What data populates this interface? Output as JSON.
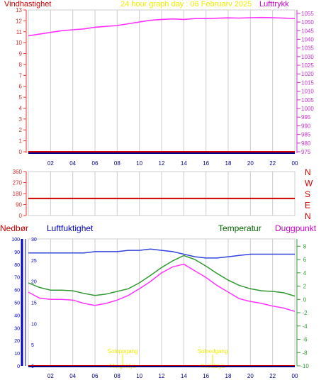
{
  "header": {
    "left_label": "Vindhastighet",
    "center_label": "24 hour graph day : 06 Februarv 2025",
    "right_label": "Lufttrykk"
  },
  "colors": {
    "pressure": "#ff33ff",
    "wind": "#cc0000",
    "direction": "#cc0000",
    "humidity": "#3344dd",
    "temperature": "#339933",
    "dewpoint": "#ff33ff",
    "rain": "#cc0000",
    "sun": "#eeee00",
    "axis_left": "#ff3333",
    "axis_left_text": "#cc3333",
    "axis_pressure": "#cc33cc",
    "axis_rain": "#0000cc",
    "axis_temp": "#339933",
    "hour_text": "#000088",
    "grid": "#cccccc"
  },
  "chart_data": [
    {
      "id": "wind_pressure",
      "type": "line",
      "x_ticks": [
        "02",
        "04",
        "06",
        "08",
        "10",
        "12",
        "14",
        "16",
        "18",
        "20",
        "22",
        "00"
      ],
      "left_axis": {
        "label": "Vindhastighet",
        "ticks": [
          0,
          1,
          2,
          3,
          4,
          5,
          6,
          7,
          8,
          9,
          10,
          11,
          12,
          13
        ],
        "ylim": [
          0,
          13
        ]
      },
      "right_axis": {
        "label": "Lufttrykk",
        "ticks": [
          975,
          980,
          985,
          990,
          995,
          1000,
          1005,
          1010,
          1015,
          1020,
          1025,
          1030,
          1035,
          1040,
          1045,
          1050,
          1055
        ],
        "ylim": [
          975,
          1057
        ]
      },
      "series": [
        {
          "key": "pressure",
          "axis": "right",
          "x": [
            0,
            1,
            2,
            3,
            4,
            5,
            6,
            7,
            8,
            9,
            10,
            11,
            12,
            13,
            14,
            15,
            16,
            17,
            18,
            19,
            20,
            21,
            22,
            23,
            24
          ],
          "values": [
            1042,
            1043,
            1044,
            1045,
            1045.5,
            1046,
            1047,
            1047.5,
            1048,
            1049,
            1050,
            1051,
            1051.5,
            1051.8,
            1051.5,
            1052,
            1052,
            1052.2,
            1052.4,
            1052.3,
            1052.5,
            1052.6,
            1052.5,
            1052.3,
            1052
          ]
        },
        {
          "key": "wind",
          "axis": "left",
          "x": [
            0,
            24
          ],
          "values": [
            0,
            0
          ]
        }
      ]
    },
    {
      "id": "wind_direction",
      "type": "line",
      "left_axis": {
        "ticks": [
          0,
          90,
          180,
          270,
          360
        ],
        "ylim": [
          0,
          360
        ]
      },
      "right_labels": [
        "N",
        "W",
        "S",
        "E",
        "N"
      ],
      "series": [
        {
          "key": "direction",
          "x": [
            0,
            24
          ],
          "values": [
            140,
            140
          ]
        }
      ]
    },
    {
      "id": "temp_humidity",
      "type": "line",
      "x_ticks": [
        "02",
        "04",
        "06",
        "08",
        "10",
        "12",
        "14",
        "16",
        "18",
        "20",
        "22",
        "00"
      ],
      "top_labels": {
        "rain": "Nedbør",
        "humidity": "Luftfuktighet",
        "temperature": "Temperatur",
        "dewpoint": "Duggpunkt"
      },
      "humidity_axis": {
        "ticks": [
          0,
          10,
          20,
          30,
          40,
          50,
          60,
          70,
          80,
          90,
          100
        ],
        "ylim": [
          0,
          100
        ]
      },
      "rain_axis": {
        "ticks": [
          0,
          5,
          10,
          15,
          20,
          25,
          30
        ],
        "ylim": [
          0,
          30
        ]
      },
      "temp_axis": {
        "ticks": [
          -10,
          -8,
          -6,
          -4,
          -2,
          0,
          2,
          4,
          6,
          8
        ],
        "ylim": [
          -10,
          9.1
        ]
      },
      "series": [
        {
          "key": "humidity",
          "axis": "humidity",
          "x": [
            0,
            1,
            2,
            3,
            4,
            5,
            6,
            7,
            8,
            9,
            10,
            11,
            12,
            13,
            14,
            15,
            16,
            17,
            18,
            19,
            20,
            21,
            22,
            23,
            24
          ],
          "values": [
            89,
            89,
            89,
            89,
            89,
            89,
            90,
            90,
            90,
            91,
            91,
            92,
            91,
            90,
            88,
            86,
            85,
            85,
            86,
            87,
            88,
            88,
            88,
            88,
            88
          ]
        },
        {
          "key": "temperature",
          "axis": "temp",
          "x": [
            0,
            1,
            2,
            3,
            4,
            5,
            6,
            7,
            8,
            9,
            10,
            11,
            12,
            13,
            14,
            15,
            16,
            17,
            18,
            19,
            20,
            21,
            22,
            23,
            24
          ],
          "values": [
            2.5,
            1.8,
            1.4,
            1.4,
            1.3,
            0.9,
            0.6,
            0.8,
            1.2,
            1.6,
            2.5,
            3.6,
            4.8,
            5.8,
            6.6,
            6.0,
            5.0,
            3.9,
            2.9,
            2.1,
            1.6,
            1.3,
            1.2,
            1.0,
            0.5
          ]
        },
        {
          "key": "dewpoint",
          "axis": "temp",
          "x": [
            0,
            1,
            2,
            3,
            4,
            5,
            6,
            7,
            8,
            9,
            10,
            11,
            12,
            13,
            14,
            15,
            16,
            17,
            18,
            19,
            20,
            21,
            22,
            23,
            24
          ],
          "values": [
            1.1,
            0.2,
            0,
            0,
            -0.1,
            -0.6,
            -0.9,
            -0.6,
            -0.1,
            0.6,
            1.6,
            2.7,
            4.0,
            4.9,
            5.3,
            4.3,
            3.3,
            2.1,
            1.1,
            0.1,
            -0.3,
            -0.6,
            -1.0,
            -1.3,
            -1.8
          ]
        },
        {
          "key": "rain",
          "axis": "rain",
          "x": [
            0,
            24
          ],
          "values": [
            0,
            0
          ]
        }
      ],
      "sun_events": [
        {
          "top": "Soloppgang",
          "bottom": "Morgenlys",
          "hour": 8.5
        },
        {
          "top": "Solnedgang",
          "bottom": "Kveldslys",
          "hour": 16.6
        }
      ]
    }
  ]
}
